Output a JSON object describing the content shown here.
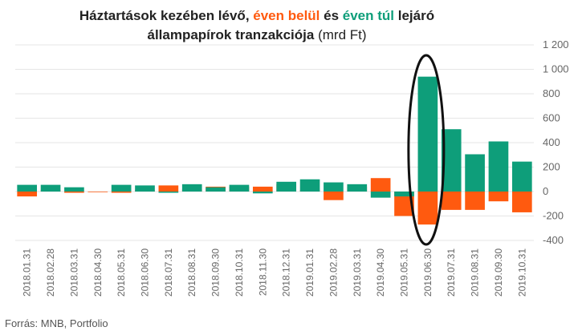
{
  "title": {
    "part1": "Háztartások kezében lévő, ",
    "part2": "éven belül",
    "part3": " és ",
    "part4": "éven túl",
    "part5": " lejáró",
    "part6": "állampapírok tranzakciója",
    "part7": " (mrd Ft)"
  },
  "source": "Forrás: MNB, Portfolio",
  "colors": {
    "short": "#ff5a0f",
    "long": "#0e9e7a",
    "grid": "#e6e6e6",
    "ellipse": "#111111"
  },
  "chart_data": {
    "type": "bar",
    "stacked": true,
    "categories": [
      "2018.01.31",
      "2018.02.28",
      "2018.03.31",
      "2018.04.30",
      "2018.05.31",
      "2018.06.30",
      "2018.07.31",
      "2018.08.31",
      "2018.09.30",
      "2018.10.31",
      "2018.11.30",
      "2018.12.31",
      "2019.01.31",
      "2019.02.28",
      "2019.03.31",
      "2019.04.30",
      "2019.05.31",
      "2019.06.30",
      "2019.07.31",
      "2019.08.31",
      "2019.09.30",
      "2019.10.31"
    ],
    "series": [
      {
        "name": "éven belül",
        "color": "#ff5a0f",
        "values": [
          -40,
          10,
          -10,
          -5,
          -10,
          10,
          50,
          20,
          40,
          40,
          40,
          60,
          10,
          -70,
          40,
          110,
          -200,
          -270,
          -150,
          -150,
          -80,
          -170
        ]
      },
      {
        "name": "éven túl",
        "color": "#0e9e7a",
        "values": [
          55,
          55,
          35,
          0,
          55,
          50,
          -10,
          60,
          35,
          55,
          -15,
          80,
          100,
          75,
          60,
          -50,
          -40,
          940,
          510,
          305,
          410,
          245
        ]
      }
    ],
    "ylim": [
      -400,
      1200
    ],
    "yticks": [
      -400,
      -200,
      0,
      200,
      400,
      600,
      800,
      1000,
      1200
    ],
    "ytick_labels": [
      "-400",
      "-200",
      "0",
      "200",
      "400",
      "600",
      "800",
      "1 000",
      "1 200"
    ],
    "y_axis_side": "right",
    "grid": true,
    "highlight": "2019.06.30"
  }
}
